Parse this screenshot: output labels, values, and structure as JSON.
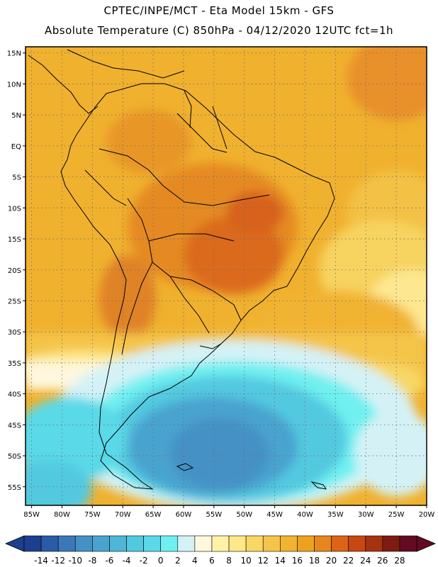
{
  "header": {
    "line1": "CPTEC/INPE/MCT  -   Eta Model 15km  -  GFS",
    "line2": "Absolute Temperature (C) 850hPa - 04/12/2020 12UTC fct=1h"
  },
  "map": {
    "lon_range": [
      -86,
      -20
    ],
    "lat_range": [
      -58,
      16
    ],
    "lat_labels": [
      {
        "lat": 15,
        "text": "15N"
      },
      {
        "lat": 10,
        "text": "10N"
      },
      {
        "lat": 5,
        "text": "5N"
      },
      {
        "lat": 0,
        "text": "EQ"
      },
      {
        "lat": -5,
        "text": "5S"
      },
      {
        "lat": -10,
        "text": "10S"
      },
      {
        "lat": -15,
        "text": "15S"
      },
      {
        "lat": -20,
        "text": "20S"
      },
      {
        "lat": -25,
        "text": "25S"
      },
      {
        "lat": -30,
        "text": "30S"
      },
      {
        "lat": -35,
        "text": "35S"
      },
      {
        "lat": -40,
        "text": "40S"
      },
      {
        "lat": -45,
        "text": "45S"
      },
      {
        "lat": -50,
        "text": "50S"
      },
      {
        "lat": -55,
        "text": "55S"
      }
    ],
    "lon_labels": [
      {
        "lon": -85,
        "text": "85W"
      },
      {
        "lon": -80,
        "text": "80W"
      },
      {
        "lon": -75,
        "text": "75W"
      },
      {
        "lon": -70,
        "text": "70W"
      },
      {
        "lon": -65,
        "text": "65W"
      },
      {
        "lon": -60,
        "text": "60W"
      },
      {
        "lon": -55,
        "text": "55W"
      },
      {
        "lon": -50,
        "text": "50W"
      },
      {
        "lon": -45,
        "text": "45W"
      },
      {
        "lon": -40,
        "text": "40W"
      },
      {
        "lon": -35,
        "text": "35W"
      },
      {
        "lon": -30,
        "text": "30W"
      },
      {
        "lon": -25,
        "text": "25W"
      },
      {
        "lon": -20,
        "text": "20W"
      }
    ]
  },
  "colorbar": {
    "labels": [
      "-14",
      "-12",
      "-10",
      "-8",
      "-6",
      "-4",
      "-2",
      "0",
      "2",
      "4",
      "6",
      "8",
      "10",
      "12",
      "14",
      "16",
      "18",
      "20",
      "22",
      "24",
      "26",
      "28"
    ],
    "colors": [
      "#1c3f8e",
      "#2a5ba6",
      "#3a78b9",
      "#4591c6",
      "#4aa3cf",
      "#4fb6d8",
      "#52c9e0",
      "#5ad9e8",
      "#6ff0f0",
      "#d4f2f6",
      "#fff7de",
      "#fff2a6",
      "#fde787",
      "#f8d765",
      "#f4c548",
      "#f1b331",
      "#eda21f",
      "#e6861b",
      "#dd6316",
      "#c94712",
      "#a73210",
      "#7e1c12",
      "#640a22"
    ],
    "low_color": "#1c3f8e",
    "high_color": "#640a22"
  }
}
